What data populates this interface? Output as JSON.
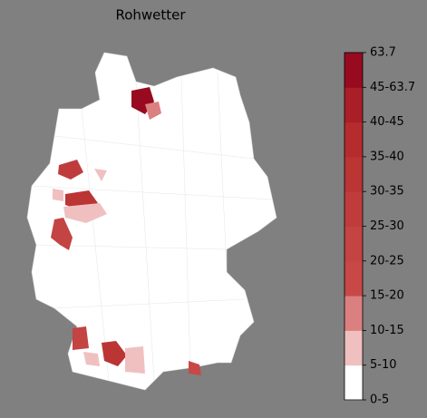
{
  "title": "Rohwetter",
  "legend": {
    "labels": [
      "0-5",
      "5-10",
      "10-15",
      "15-20",
      "20-25",
      "25-30",
      "30-35",
      "35-40",
      "40-45",
      "45-63.7",
      "63.7"
    ],
    "colors": [
      "#ffffff",
      "#f0c0c0",
      "#db8080",
      "#c84848",
      "#c44343",
      "#c03c3c",
      "#bb3535",
      "#b62c2e",
      "#aa1e28",
      "#980a20"
    ]
  }
}
